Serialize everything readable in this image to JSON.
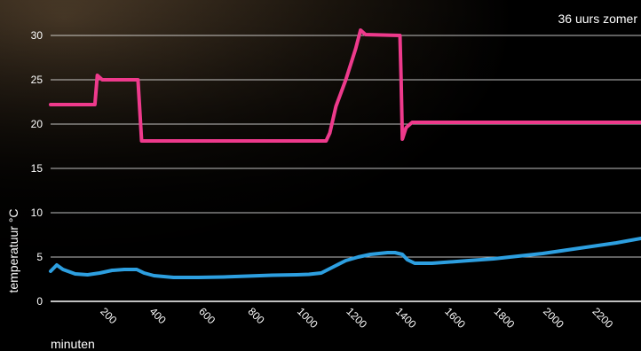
{
  "chart_data": {
    "type": "line",
    "annotation": "36 uurs zomer",
    "xlabel": "minuten",
    "ylabel": "temperatuur  °C",
    "xlim": [
      0,
      2400
    ],
    "ylim": [
      0,
      30
    ],
    "grid": true,
    "x_ticks": [
      200,
      400,
      600,
      800,
      1000,
      1200,
      1400,
      1600,
      1800,
      2000,
      2200
    ],
    "y_ticks": [
      0,
      5,
      10,
      15,
      20,
      25,
      30
    ],
    "colors": {
      "pink": "#ee3a8c",
      "blue": "#2d9fe0",
      "grid": "#ffffff",
      "background": "#000000"
    },
    "series": [
      {
        "color": "#ee3a8c",
        "points": [
          [
            0,
            22.2
          ],
          [
            180,
            22.2
          ],
          [
            190,
            25.5
          ],
          [
            210,
            25
          ],
          [
            355,
            25
          ],
          [
            370,
            18.1
          ],
          [
            1120,
            18.1
          ],
          [
            1135,
            19
          ],
          [
            1160,
            22
          ],
          [
            1200,
            25
          ],
          [
            1240,
            28.5
          ],
          [
            1260,
            30.6
          ],
          [
            1280,
            30.1
          ],
          [
            1420,
            30
          ],
          [
            1425,
            25
          ],
          [
            1430,
            18.3
          ],
          [
            1445,
            19.6
          ],
          [
            1470,
            20.2
          ],
          [
            2400,
            20.2
          ]
        ]
      },
      {
        "color": "#2d9fe0",
        "points": [
          [
            0,
            3.4
          ],
          [
            25,
            4.1
          ],
          [
            50,
            3.6
          ],
          [
            100,
            3.1
          ],
          [
            150,
            3.0
          ],
          [
            200,
            3.2
          ],
          [
            250,
            3.5
          ],
          [
            300,
            3.6
          ],
          [
            350,
            3.6
          ],
          [
            380,
            3.2
          ],
          [
            420,
            2.9
          ],
          [
            500,
            2.7
          ],
          [
            600,
            2.7
          ],
          [
            700,
            2.75
          ],
          [
            800,
            2.85
          ],
          [
            900,
            2.95
          ],
          [
            1000,
            3.0
          ],
          [
            1050,
            3.05
          ],
          [
            1100,
            3.2
          ],
          [
            1150,
            3.9
          ],
          [
            1200,
            4.6
          ],
          [
            1250,
            5.0
          ],
          [
            1300,
            5.3
          ],
          [
            1370,
            5.5
          ],
          [
            1400,
            5.5
          ],
          [
            1430,
            5.3
          ],
          [
            1450,
            4.7
          ],
          [
            1480,
            4.3
          ],
          [
            1550,
            4.3
          ],
          [
            1600,
            4.4
          ],
          [
            1700,
            4.6
          ],
          [
            1800,
            4.8
          ],
          [
            1900,
            5.1
          ],
          [
            2000,
            5.4
          ],
          [
            2100,
            5.8
          ],
          [
            2200,
            6.2
          ],
          [
            2300,
            6.6
          ],
          [
            2400,
            7.1
          ]
        ]
      }
    ]
  }
}
